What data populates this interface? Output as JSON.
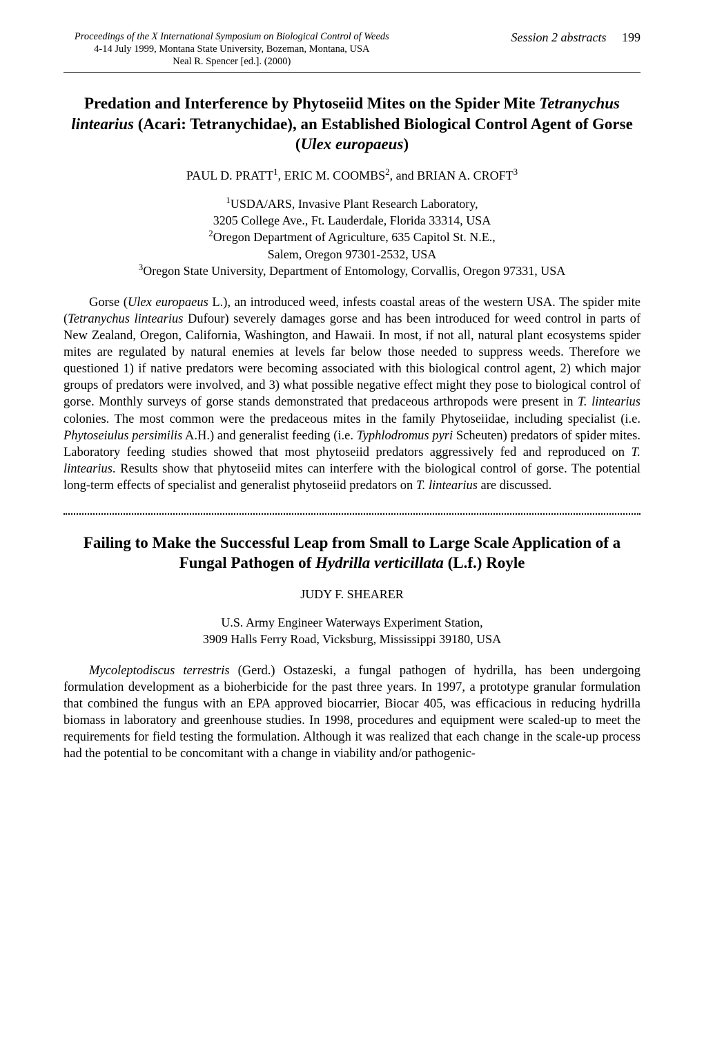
{
  "header": {
    "proceedings_line1": "Proceedings of the X International Symposium on Biological Control of Weeds",
    "proceedings_line2": "4-14 July 1999, Montana State University, Bozeman, Montana, USA",
    "proceedings_line3": "Neal R. Spencer [ed.].  (2000)",
    "session_label": "Session 2 abstracts",
    "page_number": "199"
  },
  "article1": {
    "title_pre": "Predation and Interference by Phytoseiid Mites on the Spider Mite ",
    "title_species1": "Tetranychus lintearius",
    "title_mid": " (Acari: Tetranychidae), an Established Biological Control Agent of Gorse (",
    "title_species2": "Ulex europaeus",
    "title_post": ")",
    "author1": "PAUL D. PRATT",
    "author2": "ERIC M. COOMBS",
    "author3": "BRIAN A. CROFT",
    "affil1_line1": "USDA/ARS, Invasive Plant Research Laboratory,",
    "affil1_line2": "3205 College Ave., Ft. Lauderdale, Florida 33314, USA",
    "affil2_line1": "Oregon Department of Agriculture, 635 Capitol St. N.E.,",
    "affil2_line2": "Salem, Oregon 97301-2532, USA",
    "affil3_line1": "Oregon State University, Department of Entomology, Corvallis, Oregon 97331, USA",
    "abs_p1_t0": "Gorse (",
    "abs_p1_i1": "Ulex europaeus",
    "abs_p1_t2": " L.), an introduced weed, infests coastal areas of the western USA. The spider mite (",
    "abs_p1_i3": "Tetranychus lintearius",
    "abs_p1_t4": " Dufour) severely damages gorse and has been introduced for weed control in parts of New Zealand, Oregon, California, Washington, and Hawaii. In most, if not all, natural plant ecosystems spider mites are regulated by natural enemies at levels far below those needed to suppress weeds. Therefore we questioned 1) if native predators were becoming associated with this biological control agent, 2) which major groups of predators were involved, and 3) what possible negative effect might they pose to biological control of gorse. Monthly surveys of gorse stands demonstrated that predaceous arthropods were present in ",
    "abs_p1_i5": "T. lintearius",
    "abs_p1_t6": " colonies. The most common were the predaceous mites in the family Phytoseiidae, including specialist (i.e. ",
    "abs_p1_i7": "Phytoseiulus persimilis",
    "abs_p1_t8": " A.H.) and generalist feeding (i.e. ",
    "abs_p1_i9": "Typhlodromus pyri",
    "abs_p1_t10": " Scheuten) predators of spider mites. Laboratory feeding studies showed that most phytoseiid predators aggressively fed and reproduced on ",
    "abs_p1_i11": "T. lintearius",
    "abs_p1_t12": ". Results show that phytoseiid mites can interfere with the biological control of gorse. The potential long-term effects of specialist and generalist phytoseiid predators on ",
    "abs_p1_i13": "T. lintearius",
    "abs_p1_t14": " are discussed."
  },
  "article2": {
    "title_pre": "Failing to Make the Successful Leap from Small to Large Scale Application of a Fungal Pathogen of ",
    "title_species1": "Hydrilla verticillata",
    "title_post": " (L.f.) Royle",
    "author1": "JUDY F. SHEARER",
    "affil_line1": "U.S. Army Engineer Waterways Experiment Station,",
    "affil_line2": "3909 Halls Ferry Road, Vicksburg, Mississippi 39180, USA",
    "abs_p1_i0": "Mycoleptodiscus terrestris",
    "abs_p1_t1": " (Gerd.) Ostazeski, a fungal pathogen of hydrilla, has been undergoing formulation development as a bioherbicide for the past three years. In 1997, a prototype granular formulation that combined the fungus with an EPA approved biocarrier, Biocar 405, was efficacious in reducing hydrilla biomass in laboratory and greenhouse studies. In 1998, procedures and equipment were scaled-up to meet the requirements for field testing the formulation. Although it was realized that each change in the scale-up process had the potential to be concomitant with a change in viability and/or pathogenic-"
  }
}
